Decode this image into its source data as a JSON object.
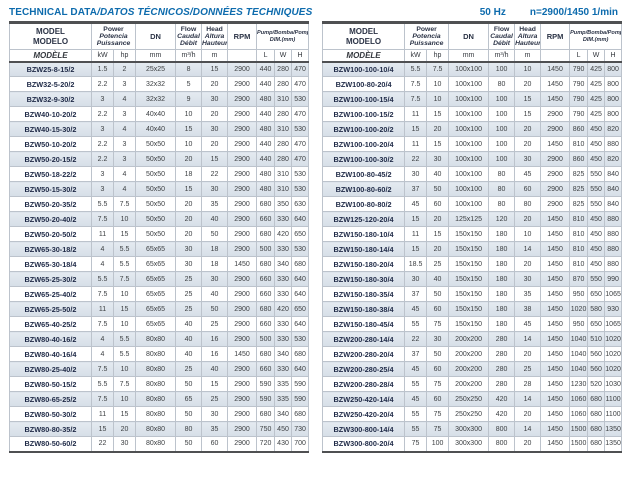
{
  "title": {
    "part1": "TECHNICAL DATA",
    "part2": "/DATOS TÉCNICOS/DONNÉES TECHNIQUES"
  },
  "frequency_note": {
    "hz": "50 Hz",
    "speed": "n=2900/1450 1/min"
  },
  "header": {
    "model": {
      "l1": "MODEL",
      "l2": "MODELO",
      "l3": "MODÈLE"
    },
    "power": {
      "l1": "Power",
      "l2": "Potencia",
      "l3": "Puissance"
    },
    "power_sub": {
      "kw": "kW",
      "hp": "hp"
    },
    "dn": {
      "label": "DN",
      "unit": "mm"
    },
    "flow": {
      "l1": "Flow",
      "l2": "Caudal",
      "l3": "Débit",
      "unit": "m³/h"
    },
    "head": {
      "l1": "Head",
      "l2": "Altura",
      "l3": "Hauteur",
      "unit": "m"
    },
    "rpm": {
      "label": "RPM",
      "unit": ""
    },
    "dim": {
      "l1": "Pump/Bomba/Pompe",
      "l2": "DIM.(mm)",
      "sub_l": "L",
      "sub_w": "W",
      "sub_h": "H"
    }
  },
  "colors": {
    "accent_blue": "#0d6bad",
    "row_shade": "#dbe2ea",
    "border_dark": "#4f5052",
    "grid_line": "#bcc3cc",
    "model_text": "#1f2a47"
  },
  "left_table": {
    "rows": [
      [
        "BZW25-8-15/2",
        "1.5",
        "2",
        "25x25",
        "8",
        "15",
        "2900",
        "440",
        "280",
        "470"
      ],
      [
        "BZW32-5-20/2",
        "2.2",
        "3",
        "32x32",
        "5",
        "20",
        "2900",
        "440",
        "280",
        "470"
      ],
      [
        "BZW32-9-30/2",
        "3",
        "4",
        "32x32",
        "9",
        "30",
        "2900",
        "480",
        "310",
        "530"
      ],
      [
        "BZW40-10-20/2",
        "2.2",
        "3",
        "40x40",
        "10",
        "20",
        "2900",
        "440",
        "280",
        "470"
      ],
      [
        "BZW40-15-30/2",
        "3",
        "4",
        "40x40",
        "15",
        "30",
        "2900",
        "480",
        "310",
        "530"
      ],
      [
        "BZW50-10-20/2",
        "2.2",
        "3",
        "50x50",
        "10",
        "20",
        "2900",
        "440",
        "280",
        "470"
      ],
      [
        "BZW50-20-15/2",
        "2.2",
        "3",
        "50x50",
        "20",
        "15",
        "2900",
        "440",
        "280",
        "470"
      ],
      [
        "BZW50-18-22/2",
        "3",
        "4",
        "50x50",
        "18",
        "22",
        "2900",
        "480",
        "310",
        "530"
      ],
      [
        "BZW50-15-30/2",
        "3",
        "4",
        "50x50",
        "15",
        "30",
        "2900",
        "480",
        "310",
        "530"
      ],
      [
        "BZW50-20-35/2",
        "5.5",
        "7.5",
        "50x50",
        "20",
        "35",
        "2900",
        "680",
        "350",
        "630"
      ],
      [
        "BZW50-20-40/2",
        "7.5",
        "10",
        "50x50",
        "20",
        "40",
        "2900",
        "660",
        "330",
        "640"
      ],
      [
        "BZW50-20-50/2",
        "11",
        "15",
        "50x50",
        "20",
        "50",
        "2900",
        "680",
        "420",
        "650"
      ],
      [
        "BZW65-30-18/2",
        "4",
        "5.5",
        "65x65",
        "30",
        "18",
        "2900",
        "500",
        "330",
        "530"
      ],
      [
        "BZW65-30-18/4",
        "4",
        "5.5",
        "65x65",
        "30",
        "18",
        "1450",
        "680",
        "340",
        "680"
      ],
      [
        "BZW65-25-30/2",
        "5.5",
        "7.5",
        "65x65",
        "25",
        "30",
        "2900",
        "660",
        "330",
        "640"
      ],
      [
        "BZW65-25-40/2",
        "7.5",
        "10",
        "65x65",
        "25",
        "40",
        "2900",
        "660",
        "330",
        "640"
      ],
      [
        "BZW65-25-50/2",
        "11",
        "15",
        "65x65",
        "25",
        "50",
        "2900",
        "680",
        "420",
        "650"
      ],
      [
        "BZW65-40-25/2",
        "7.5",
        "10",
        "65x65",
        "40",
        "25",
        "2900",
        "660",
        "330",
        "640"
      ],
      [
        "BZW80-40-16/2",
        "4",
        "5.5",
        "80x80",
        "40",
        "16",
        "2900",
        "500",
        "330",
        "530"
      ],
      [
        "BZW80-40-16/4",
        "4",
        "5.5",
        "80x80",
        "40",
        "16",
        "1450",
        "680",
        "340",
        "680"
      ],
      [
        "BZW80-25-40/2",
        "7.5",
        "10",
        "80x80",
        "25",
        "40",
        "2900",
        "660",
        "330",
        "640"
      ],
      [
        "BZW80-50-15/2",
        "5.5",
        "7.5",
        "80x80",
        "50",
        "15",
        "2900",
        "590",
        "335",
        "590"
      ],
      [
        "BZW80-65-25/2",
        "7.5",
        "10",
        "80x80",
        "65",
        "25",
        "2900",
        "590",
        "335",
        "590"
      ],
      [
        "BZW80-50-30/2",
        "11",
        "15",
        "80x80",
        "50",
        "30",
        "2900",
        "680",
        "340",
        "680"
      ],
      [
        "BZW80-80-35/2",
        "15",
        "20",
        "80x80",
        "80",
        "35",
        "2900",
        "750",
        "450",
        "730"
      ],
      [
        "BZW80-50-60/2",
        "22",
        "30",
        "80x80",
        "50",
        "60",
        "2900",
        "720",
        "430",
        "700"
      ]
    ]
  },
  "right_table": {
    "rows": [
      [
        "BZW100-100-10/4",
        "5.5",
        "7.5",
        "100x100",
        "100",
        "10",
        "1450",
        "790",
        "425",
        "800"
      ],
      [
        "BZW100-80-20/4",
        "7.5",
        "10",
        "100x100",
        "80",
        "20",
        "1450",
        "790",
        "425",
        "800"
      ],
      [
        "BZW100-100-15/4",
        "7.5",
        "10",
        "100x100",
        "100",
        "15",
        "1450",
        "790",
        "425",
        "800"
      ],
      [
        "BZW100-100-15/2",
        "11",
        "15",
        "100x100",
        "100",
        "15",
        "2900",
        "790",
        "425",
        "800"
      ],
      [
        "BZW100-100-20/2",
        "15",
        "20",
        "100x100",
        "100",
        "20",
        "2900",
        "860",
        "450",
        "820"
      ],
      [
        "BZW100-100-20/4",
        "11",
        "15",
        "100x100",
        "100",
        "20",
        "1450",
        "810",
        "450",
        "880"
      ],
      [
        "BZW100-100-30/2",
        "22",
        "30",
        "100x100",
        "100",
        "30",
        "2900",
        "860",
        "450",
        "820"
      ],
      [
        "BZW100-80-45/2",
        "30",
        "40",
        "100x100",
        "80",
        "45",
        "2900",
        "825",
        "550",
        "840"
      ],
      [
        "BZW100-80-60/2",
        "37",
        "50",
        "100x100",
        "80",
        "60",
        "2900",
        "825",
        "550",
        "840"
      ],
      [
        "BZW100-80-80/2",
        "45",
        "60",
        "100x100",
        "80",
        "80",
        "2900",
        "825",
        "550",
        "840"
      ],
      [
        "BZW125-120-20/4",
        "15",
        "20",
        "125x125",
        "120",
        "20",
        "1450",
        "810",
        "450",
        "880"
      ],
      [
        "BZW150-180-10/4",
        "11",
        "15",
        "150x150",
        "180",
        "10",
        "1450",
        "810",
        "450",
        "880"
      ],
      [
        "BZW150-180-14/4",
        "15",
        "20",
        "150x150",
        "180",
        "14",
        "1450",
        "810",
        "450",
        "880"
      ],
      [
        "BZW150-180-20/4",
        "18.5",
        "25",
        "150x150",
        "180",
        "20",
        "1450",
        "810",
        "450",
        "880"
      ],
      [
        "BZW150-180-30/4",
        "30",
        "40",
        "150x150",
        "180",
        "30",
        "1450",
        "870",
        "550",
        "990"
      ],
      [
        "BZW150-180-35/4",
        "37",
        "50",
        "150x150",
        "180",
        "35",
        "1450",
        "950",
        "650",
        "1065"
      ],
      [
        "BZW150-180-38/4",
        "45",
        "60",
        "150x150",
        "180",
        "38",
        "1450",
        "1020",
        "580",
        "930"
      ],
      [
        "BZW150-180-45/4",
        "55",
        "75",
        "150x150",
        "180",
        "45",
        "1450",
        "950",
        "650",
        "1065"
      ],
      [
        "BZW200-280-14/4",
        "22",
        "30",
        "200x200",
        "280",
        "14",
        "1450",
        "1040",
        "510",
        "1020"
      ],
      [
        "BZW200-280-20/4",
        "37",
        "50",
        "200x200",
        "280",
        "20",
        "1450",
        "1040",
        "560",
        "1020"
      ],
      [
        "BZW200-280-25/4",
        "45",
        "60",
        "200x200",
        "280",
        "25",
        "1450",
        "1040",
        "560",
        "1020"
      ],
      [
        "BZW200-280-28/4",
        "55",
        "75",
        "200x200",
        "280",
        "28",
        "1450",
        "1230",
        "520",
        "1030"
      ],
      [
        "BZW250-420-14/4",
        "45",
        "60",
        "250x250",
        "420",
        "14",
        "1450",
        "1060",
        "680",
        "1100"
      ],
      [
        "BZW250-420-20/4",
        "55",
        "75",
        "250x250",
        "420",
        "20",
        "1450",
        "1060",
        "680",
        "1100"
      ],
      [
        "BZW300-800-14/4",
        "55",
        "75",
        "300x300",
        "800",
        "14",
        "1450",
        "1500",
        "680",
        "1350"
      ],
      [
        "BZW300-800-20/4",
        "75",
        "100",
        "300x300",
        "800",
        "20",
        "1450",
        "1500",
        "680",
        "1350"
      ]
    ]
  }
}
